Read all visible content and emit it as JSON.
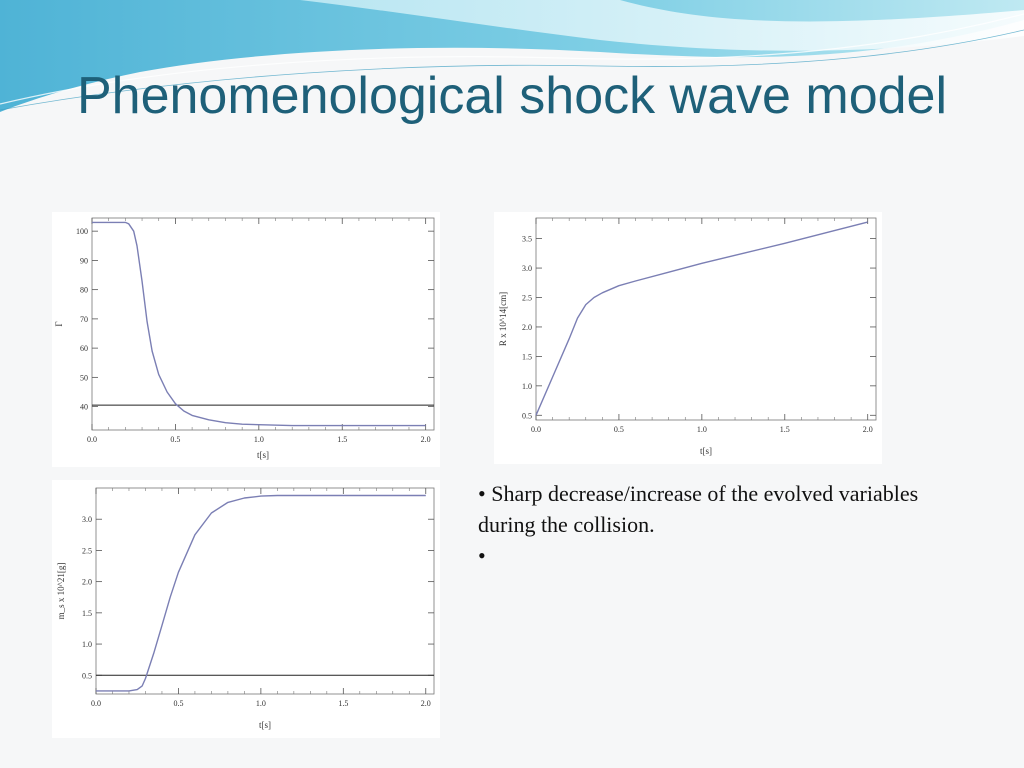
{
  "slide": {
    "title": "Phenomenological shock wave model",
    "bullets": [
      "Sharp decrease/increase of the evolved variables during the collision.",
      ""
    ],
    "colors": {
      "title": "#1e6079",
      "curve": "#7b7fb4",
      "reference_line": "#222222"
    }
  },
  "chart_data": [
    {
      "type": "line",
      "xlabel": "t[s]",
      "ylabel": "Γ",
      "xlim": [
        0.0,
        2.05
      ],
      "ylim": [
        32,
        104.5
      ],
      "xticks": [
        "0.0",
        "0.5",
        "1.0",
        "1.5",
        "2.0"
      ],
      "yticks": [
        "40",
        "50",
        "60",
        "70",
        "80",
        "90",
        "100"
      ],
      "series": [
        {
          "x": [
            0.0,
            0.1,
            0.2,
            0.22,
            0.25,
            0.27,
            0.3,
            0.33,
            0.36,
            0.4,
            0.45,
            0.5,
            0.55,
            0.6,
            0.7,
            0.8,
            0.9,
            1.0,
            1.2,
            1.5,
            2.0
          ],
          "y": [
            103,
            103,
            103,
            102.5,
            100,
            95,
            83,
            69,
            59,
            51,
            45,
            41,
            38.5,
            37,
            35.5,
            34.5,
            34,
            33.8,
            33.5,
            33.5,
            33.5
          ]
        }
      ],
      "reference_line": {
        "y": 40.5
      }
    },
    {
      "type": "line",
      "xlabel": "t[s]",
      "ylabel": "R x 10^14[cm]",
      "xlim": [
        0.0,
        2.05
      ],
      "ylim": [
        0.42,
        3.85
      ],
      "xticks": [
        "0.0",
        "0.5",
        "1.0",
        "1.5",
        "2.0"
      ],
      "yticks": [
        "0.5",
        "1.0",
        "1.5",
        "2.0",
        "2.5",
        "3.0",
        "3.5"
      ],
      "series": [
        {
          "x": [
            0.0,
            0.1,
            0.2,
            0.25,
            0.3,
            0.35,
            0.4,
            0.5,
            0.6,
            0.8,
            1.0,
            1.25,
            1.5,
            1.75,
            2.0
          ],
          "y": [
            0.5,
            1.15,
            1.8,
            2.15,
            2.38,
            2.5,
            2.58,
            2.7,
            2.78,
            2.93,
            3.08,
            3.25,
            3.42,
            3.6,
            3.78
          ]
        }
      ]
    },
    {
      "type": "line",
      "xlabel": "t[s]",
      "ylabel": "m_s x 10^21[g]",
      "xlim": [
        0.0,
        2.05
      ],
      "ylim": [
        0.2,
        3.5
      ],
      "xticks": [
        "0.0",
        "0.5",
        "1.0",
        "1.5",
        "2.0"
      ],
      "yticks": [
        "0.5",
        "1.0",
        "1.5",
        "2.0",
        "2.5",
        "3.0"
      ],
      "series": [
        {
          "x": [
            0.0,
            0.2,
            0.25,
            0.28,
            0.3,
            0.35,
            0.4,
            0.45,
            0.5,
            0.6,
            0.7,
            0.8,
            0.9,
            1.0,
            1.1,
            1.2,
            1.4,
            1.6,
            2.0
          ],
          "y": [
            0.25,
            0.25,
            0.27,
            0.33,
            0.45,
            0.85,
            1.3,
            1.75,
            2.15,
            2.75,
            3.1,
            3.27,
            3.34,
            3.37,
            3.38,
            3.38,
            3.38,
            3.38,
            3.38
          ]
        }
      ],
      "reference_line": {
        "y": 0.5
      }
    }
  ]
}
